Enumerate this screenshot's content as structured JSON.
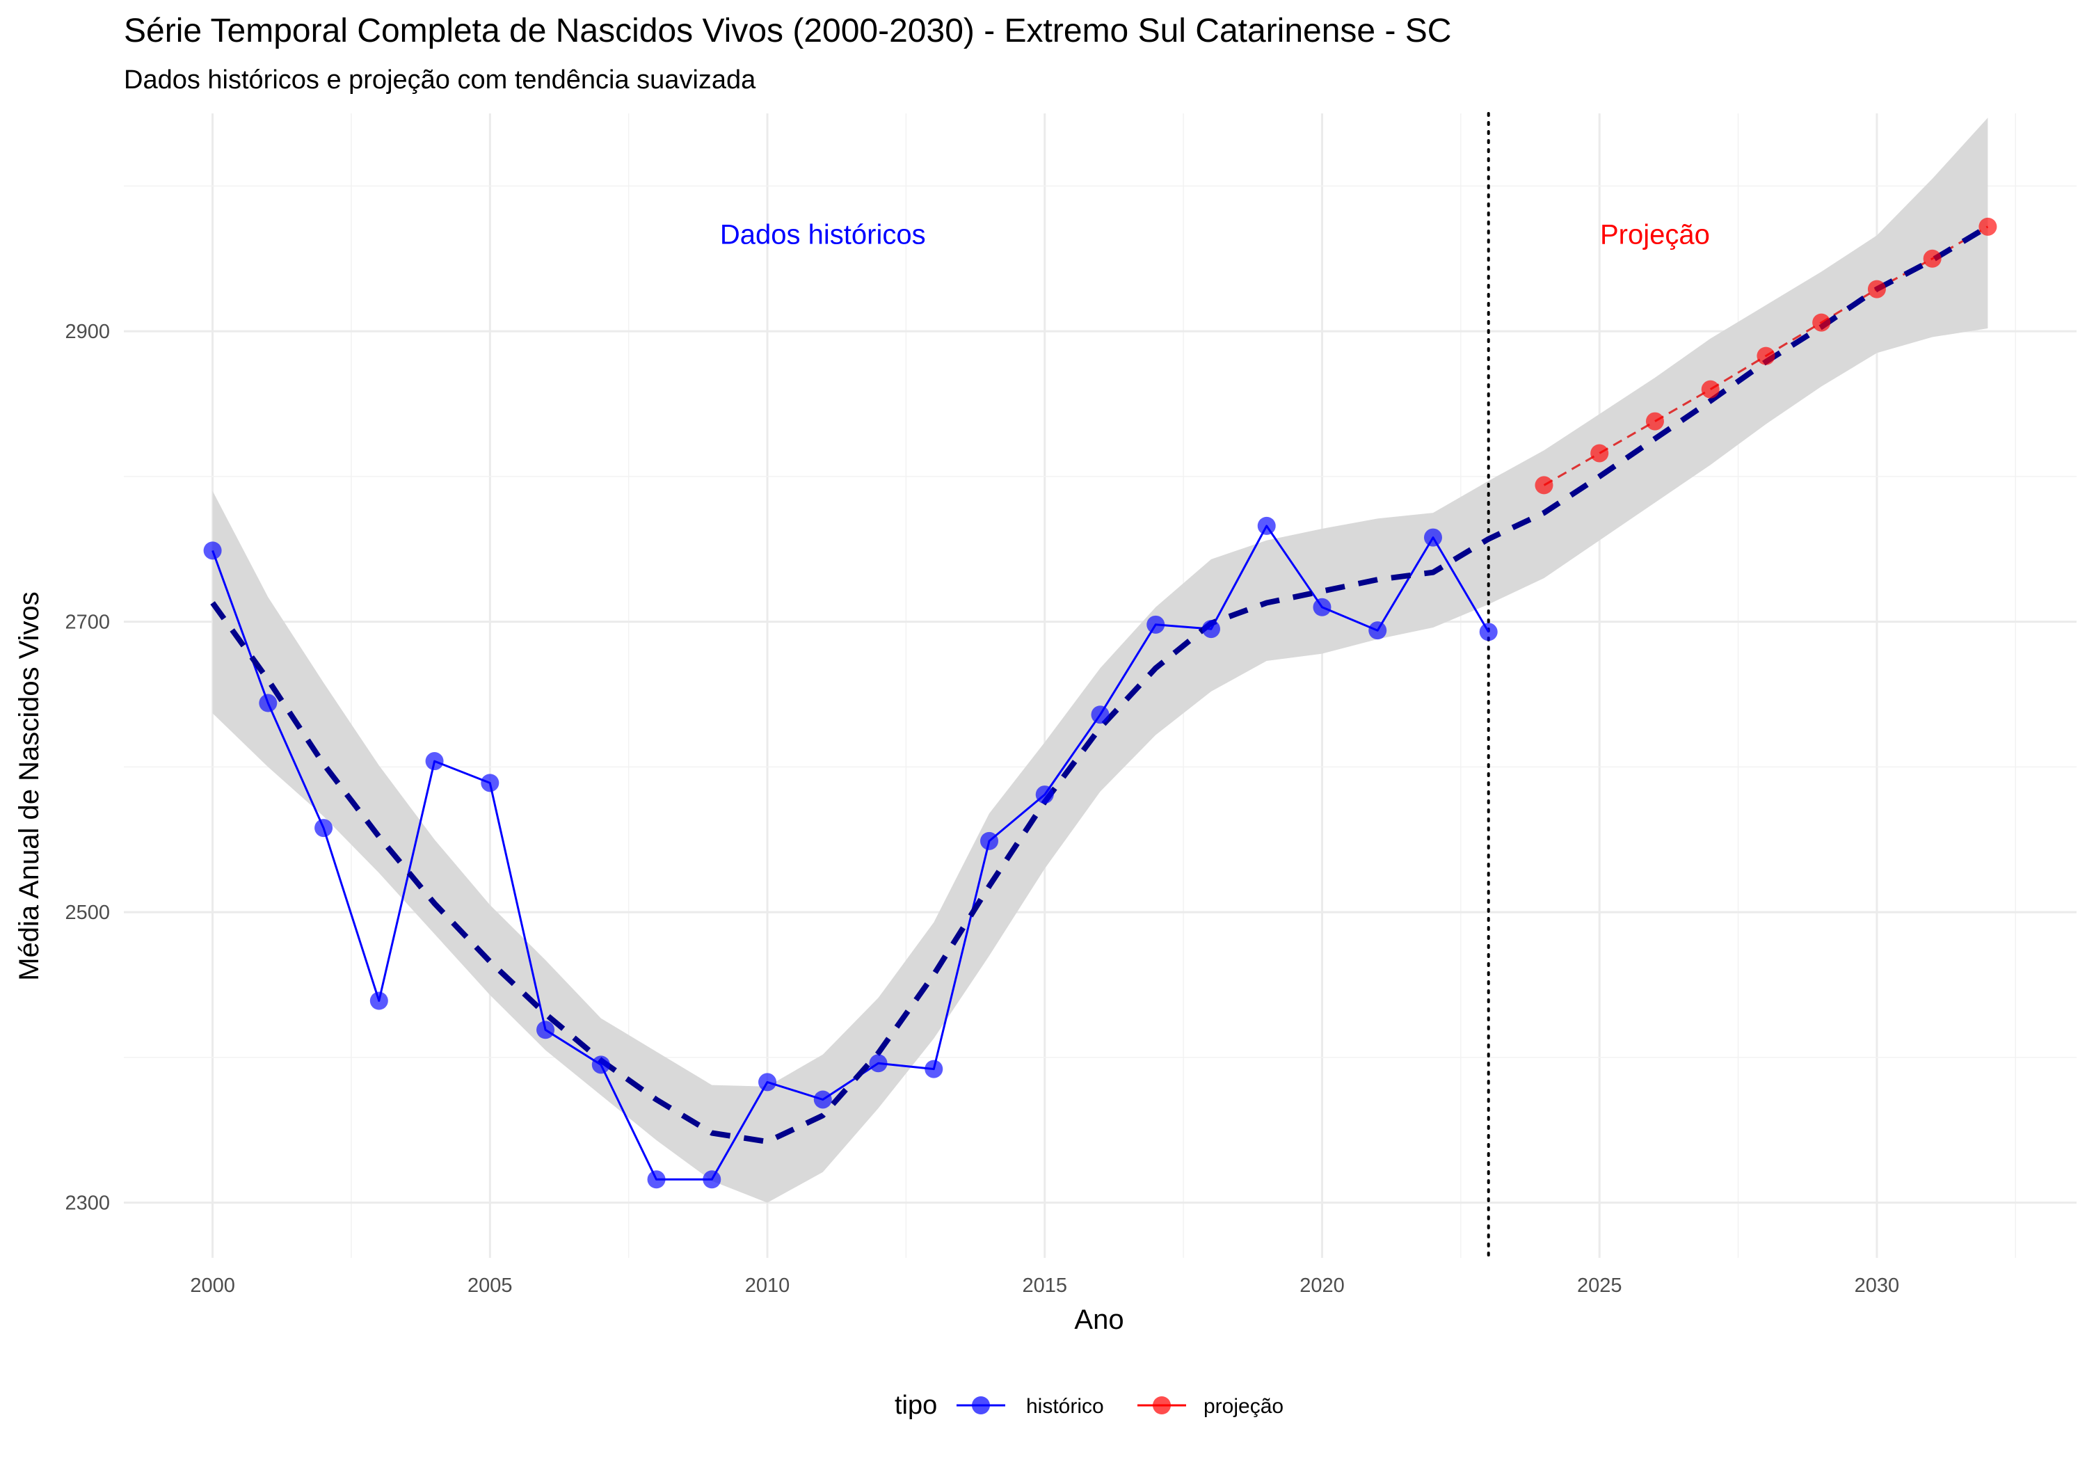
{
  "chart_data": {
    "type": "line",
    "title": "Série Temporal Completa de Nascidos Vivos (2000-2030) -  Extremo Sul Catarinense - SC",
    "subtitle": "Dados históricos e projeção com tendência suavizada",
    "xlabel": "Ano",
    "ylabel": "Média Anual de Nascidos Vivos",
    "xlim": [
      1998.4,
      2033.6
    ],
    "ylim": [
      2262,
      3050
    ],
    "x_ticks": [
      2000,
      2005,
      2010,
      2015,
      2020,
      2025,
      2030
    ],
    "y_ticks": [
      2300,
      2500,
      2700,
      2900
    ],
    "grid": true,
    "legend": {
      "title": "tipo",
      "position": "bottom",
      "entries": [
        "histórico",
        "projeção"
      ]
    },
    "annotations": [
      {
        "text": "Dados históricos",
        "x": 2011,
        "y": 2967,
        "color": "#0000ff"
      },
      {
        "text": "Projeção",
        "x": 2026,
        "y": 2967,
        "color": "#ff0000"
      }
    ],
    "vline": {
      "x": 2023,
      "style": "dotted",
      "color": "#000000"
    },
    "series": [
      {
        "name": "histórico",
        "color": "#0000ff",
        "line_style": "solid",
        "x": [
          2000,
          2001,
          2002,
          2003,
          2004,
          2005,
          2006,
          2007,
          2008,
          2009,
          2010,
          2011,
          2012,
          2013,
          2014,
          2015,
          2016,
          2017,
          2018,
          2019,
          2020,
          2021,
          2022,
          2023
        ],
        "values": [
          2749,
          2644,
          2558,
          2439,
          2604,
          2589,
          2419,
          2395,
          2316,
          2316,
          2383,
          2371,
          2396,
          2392,
          2549,
          2581,
          2636,
          2698,
          2695,
          2766,
          2710,
          2694,
          2758,
          2693
        ]
      },
      {
        "name": "projeção",
        "color": "#ff0000",
        "line_style": "dashed",
        "x": [
          2024,
          2025,
          2026,
          2027,
          2028,
          2029,
          2030,
          2031,
          2032
        ],
        "values": [
          2794,
          2816,
          2838,
          2860,
          2883,
          2906,
          2929,
          2950,
          2972
        ]
      },
      {
        "name": "",
        "role": "smoothed-trend",
        "color": "#00008b",
        "line_style": "dashed",
        "x": [
          2000,
          2001,
          2002,
          2003,
          2004,
          2005,
          2006,
          2007,
          2008,
          2009,
          2010,
          2011,
          2012,
          2013,
          2014,
          2015,
          2016,
          2017,
          2018,
          2019,
          2020,
          2021,
          2022,
          2023,
          2024,
          2025,
          2026,
          2027,
          2028,
          2029,
          2030,
          2031,
          2032
        ],
        "values": [
          2713,
          2660,
          2602,
          2552,
          2506,
          2466,
          2430,
          2398,
          2371,
          2348,
          2342,
          2360,
          2403,
          2457,
          2518,
          2576,
          2627,
          2668,
          2699,
          2713,
          2721,
          2729,
          2734,
          2757,
          2775,
          2800,
          2826,
          2852,
          2879,
          2903,
          2929,
          2949,
          2972
        ],
        "band_lower": [
          2637,
          2600,
          2566,
          2527,
          2485,
          2443,
          2405,
          2374,
          2343,
          2315,
          2300,
          2321,
          2365,
          2413,
          2470,
          2530,
          2583,
          2622,
          2652,
          2673,
          2678,
          2688,
          2696,
          2712,
          2730,
          2756,
          2782,
          2808,
          2836,
          2862,
          2885,
          2896,
          2902
        ],
        "band_upper": [
          2790,
          2717,
          2658,
          2601,
          2550,
          2505,
          2467,
          2427,
          2404,
          2381,
          2380,
          2402,
          2441,
          2493,
          2568,
          2617,
          2668,
          2710,
          2743,
          2756,
          2764,
          2771,
          2775,
          2797,
          2818,
          2843,
          2868,
          2895,
          2918,
          2941,
          2966,
          3005,
          3047
        ]
      }
    ]
  }
}
